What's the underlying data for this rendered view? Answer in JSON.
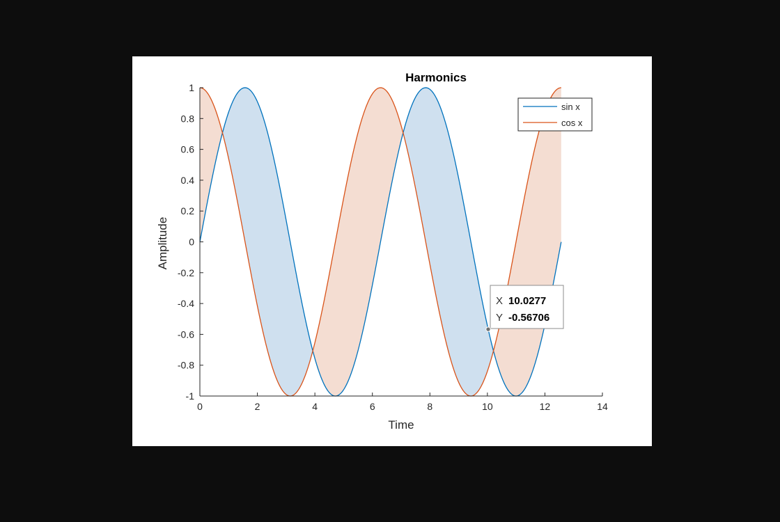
{
  "chart_data": {
    "type": "area",
    "title": "Harmonics",
    "xlabel": "Time",
    "ylabel": "Amplitude",
    "xlim": [
      0,
      14
    ],
    "ylim": [
      -1,
      1
    ],
    "xticks": [
      0,
      2,
      4,
      6,
      8,
      10,
      12,
      14
    ],
    "yticks": [
      -1,
      -0.8,
      -0.6,
      -0.4,
      -0.2,
      0,
      0.2,
      0.4,
      0.6,
      0.8,
      1
    ],
    "ytick_labels": [
      "-1",
      "-0.8",
      "-0.6",
      "-0.4",
      "-0.2",
      "0",
      "0.2",
      "0.4",
      "0.6",
      "0.8",
      "1"
    ],
    "grid": false,
    "legend_position": "top-right",
    "x_range": [
      0,
      12.566
    ],
    "series": [
      {
        "name": "sin x",
        "function": "sin",
        "color": "#0072BD",
        "fill": "#cfe0ef"
      },
      {
        "name": "cos x",
        "function": "cos",
        "color": "#D95319",
        "fill": "#f4ddd2"
      }
    ],
    "fill_between": "area between sin x and cos x, colored by the series on top",
    "datatip": {
      "x_label": "X",
      "x_value": "10.0277",
      "y_label": "Y",
      "y_value": "-0.56706",
      "x": 10.0277,
      "y": -0.56706
    }
  }
}
